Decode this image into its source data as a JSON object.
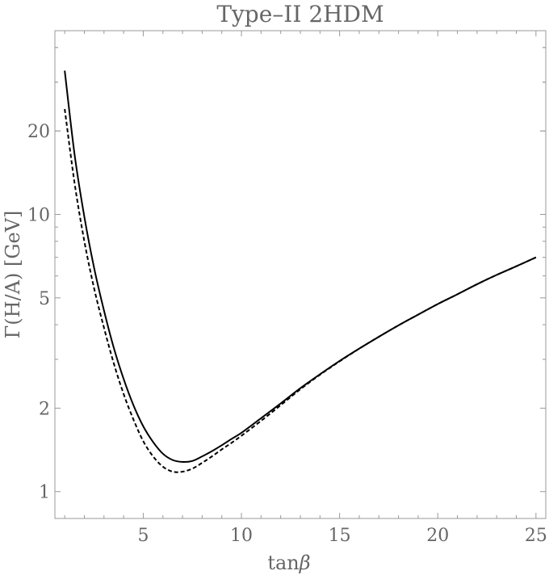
{
  "chart_data": {
    "type": "line",
    "title": "Type–II 2HDM",
    "xlabel": "tan",
    "xlabel_symbol": "β",
    "ylabel": "Γ(H/A) [GeV]",
    "xlim": [
      0.5,
      25.5
    ],
    "ylim": [
      0.8,
      46
    ],
    "y_scale": "log",
    "x_ticks": [
      5,
      10,
      15,
      20,
      25
    ],
    "x_tick_labels": [
      "5",
      "10",
      "15",
      "20",
      "25"
    ],
    "y_ticks": [
      1,
      2,
      5,
      10,
      20
    ],
    "y_tick_labels": [
      "1",
      "2",
      "5",
      "10",
      "20"
    ],
    "grid": false,
    "legend": "none",
    "series": [
      {
        "style": "solid",
        "color": "#000000",
        "x": [
          1.0,
          1.5,
          2.0,
          2.5,
          3.0,
          3.5,
          4.0,
          4.5,
          5.0,
          5.5,
          6.0,
          6.5,
          7.0,
          7.5,
          8.0,
          8.5,
          9.0,
          9.5,
          10.0,
          11.0,
          12.0,
          13.0,
          14.0,
          15.0,
          16.0,
          17.0,
          18.0,
          19.0,
          20.0,
          21.0,
          22.0,
          23.0,
          24.0,
          25.0
        ],
        "y": [
          33.0,
          16.5,
          9.8,
          6.4,
          4.5,
          3.3,
          2.55,
          2.05,
          1.72,
          1.51,
          1.37,
          1.3,
          1.28,
          1.29,
          1.34,
          1.4,
          1.47,
          1.55,
          1.63,
          1.84,
          2.08,
          2.36,
          2.65,
          2.96,
          3.28,
          3.62,
          3.98,
          4.35,
          4.75,
          5.15,
          5.6,
          6.05,
          6.5,
          7.0
        ]
      },
      {
        "style": "dashed",
        "color": "#000000",
        "x": [
          1.0,
          1.5,
          2.0,
          2.5,
          3.0,
          3.5,
          4.0,
          4.5,
          5.0,
          5.5,
          6.0,
          6.5,
          7.0,
          7.5,
          8.0,
          8.5,
          9.0,
          9.5,
          10.0,
          11.0,
          12.0,
          13.0,
          14.0,
          15.0,
          16.0,
          17.0,
          18.0,
          19.0,
          20.0,
          21.0,
          22.0,
          23.0,
          24.0,
          25.0
        ],
        "y": [
          24.0,
          13.0,
          8.0,
          5.4,
          3.9,
          2.9,
          2.25,
          1.82,
          1.52,
          1.34,
          1.23,
          1.18,
          1.18,
          1.21,
          1.27,
          1.34,
          1.42,
          1.5,
          1.59,
          1.8,
          2.05,
          2.34,
          2.64,
          2.95,
          3.28,
          3.62,
          3.98,
          4.35,
          4.75,
          5.15,
          5.6,
          6.05,
          6.5,
          7.0
        ]
      }
    ]
  }
}
